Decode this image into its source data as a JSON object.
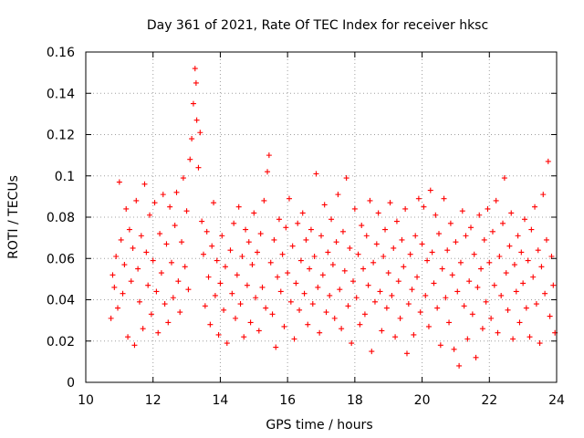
{
  "chart_data": {
    "type": "scatter",
    "title": "Day 361 of 2021, Rate Of TEC Index for receiver hksc",
    "xlabel": "GPS time / hours",
    "ylabel": "ROTI / TECUs",
    "xlim": [
      10,
      24
    ],
    "ylim": [
      0,
      0.16
    ],
    "xticks": [
      "10",
      "12",
      "14",
      "16",
      "18",
      "20",
      "22",
      "24"
    ],
    "yticks": [
      "0",
      "0.02",
      "0.04",
      "0.06",
      "0.08",
      "0.1",
      "0.12",
      "0.14",
      "0.16"
    ],
    "grid": true,
    "marker": "+",
    "color": "#ff0000",
    "series": [
      {
        "points": [
          [
            10.75,
            0.031
          ],
          [
            10.8,
            0.052
          ],
          [
            10.85,
            0.046
          ],
          [
            10.9,
            0.061
          ],
          [
            10.95,
            0.036
          ],
          [
            11.0,
            0.097
          ],
          [
            11.05,
            0.069
          ],
          [
            11.1,
            0.043
          ],
          [
            11.15,
            0.057
          ],
          [
            11.2,
            0.084
          ],
          [
            11.25,
            0.022
          ],
          [
            11.3,
            0.074
          ],
          [
            11.35,
            0.049
          ],
          [
            11.4,
            0.065
          ],
          [
            11.45,
            0.018
          ],
          [
            11.5,
            0.088
          ],
          [
            11.55,
            0.055
          ],
          [
            11.6,
            0.039
          ],
          [
            11.65,
            0.071
          ],
          [
            11.7,
            0.026
          ],
          [
            11.75,
            0.096
          ],
          [
            11.8,
            0.063
          ],
          [
            11.85,
            0.047
          ],
          [
            11.9,
            0.081
          ],
          [
            11.95,
            0.033
          ],
          [
            12.0,
            0.059
          ],
          [
            12.05,
            0.087
          ],
          [
            12.1,
            0.044
          ],
          [
            12.15,
            0.024
          ],
          [
            12.2,
            0.072
          ],
          [
            12.25,
            0.053
          ],
          [
            12.3,
            0.091
          ],
          [
            12.35,
            0.038
          ],
          [
            12.4,
            0.067
          ],
          [
            12.45,
            0.029
          ],
          [
            12.5,
            0.085
          ],
          [
            12.55,
            0.058
          ],
          [
            12.6,
            0.041
          ],
          [
            12.65,
            0.076
          ],
          [
            12.7,
            0.092
          ],
          [
            12.75,
            0.049
          ],
          [
            12.8,
            0.034
          ],
          [
            12.85,
            0.068
          ],
          [
            12.9,
            0.099
          ],
          [
            12.95,
            0.056
          ],
          [
            13.0,
            0.083
          ],
          [
            13.05,
            0.045
          ],
          [
            13.1,
            0.108
          ],
          [
            13.15,
            0.118
          ],
          [
            13.2,
            0.135
          ],
          [
            13.25,
            0.152
          ],
          [
            13.28,
            0.145
          ],
          [
            13.3,
            0.127
          ],
          [
            13.35,
            0.104
          ],
          [
            13.4,
            0.121
          ],
          [
            13.45,
            0.078
          ],
          [
            13.5,
            0.062
          ],
          [
            13.55,
            0.037
          ],
          [
            13.6,
            0.073
          ],
          [
            13.65,
            0.051
          ],
          [
            13.7,
            0.028
          ],
          [
            13.75,
            0.066
          ],
          [
            13.8,
            0.087
          ],
          [
            13.85,
            0.042
          ],
          [
            13.9,
            0.059
          ],
          [
            13.95,
            0.023
          ],
          [
            14.0,
            0.048
          ],
          [
            14.05,
            0.071
          ],
          [
            14.1,
            0.035
          ],
          [
            14.15,
            0.056
          ],
          [
            14.2,
            0.019
          ],
          [
            14.3,
            0.064
          ],
          [
            14.35,
            0.043
          ],
          [
            14.4,
            0.077
          ],
          [
            14.45,
            0.031
          ],
          [
            14.5,
            0.052
          ],
          [
            14.55,
            0.085
          ],
          [
            14.6,
            0.038
          ],
          [
            14.65,
            0.061
          ],
          [
            14.7,
            0.022
          ],
          [
            14.75,
            0.074
          ],
          [
            14.8,
            0.047
          ],
          [
            14.85,
            0.068
          ],
          [
            14.9,
            0.029
          ],
          [
            14.95,
            0.057
          ],
          [
            15.0,
            0.082
          ],
          [
            15.05,
            0.041
          ],
          [
            15.1,
            0.063
          ],
          [
            15.15,
            0.025
          ],
          [
            15.2,
            0.072
          ],
          [
            15.25,
            0.046
          ],
          [
            15.3,
            0.088
          ],
          [
            15.35,
            0.036
          ],
          [
            15.4,
            0.102
          ],
          [
            15.45,
            0.11
          ],
          [
            15.5,
            0.058
          ],
          [
            15.55,
            0.033
          ],
          [
            15.6,
            0.069
          ],
          [
            15.65,
            0.017
          ],
          [
            15.7,
            0.051
          ],
          [
            15.75,
            0.079
          ],
          [
            15.8,
            0.044
          ],
          [
            15.85,
            0.062
          ],
          [
            15.9,
            0.027
          ],
          [
            15.95,
            0.075
          ],
          [
            16.0,
            0.053
          ],
          [
            16.05,
            0.089
          ],
          [
            16.1,
            0.039
          ],
          [
            16.15,
            0.066
          ],
          [
            16.2,
            0.021
          ],
          [
            16.25,
            0.048
          ],
          [
            16.3,
            0.077
          ],
          [
            16.35,
            0.035
          ],
          [
            16.4,
            0.059
          ],
          [
            16.45,
            0.082
          ],
          [
            16.5,
            0.043
          ],
          [
            16.55,
            0.069
          ],
          [
            16.6,
            0.028
          ],
          [
            16.65,
            0.055
          ],
          [
            16.7,
            0.074
          ],
          [
            16.75,
            0.038
          ],
          [
            16.8,
            0.061
          ],
          [
            16.85,
            0.101
          ],
          [
            16.9,
            0.046
          ],
          [
            16.95,
            0.024
          ],
          [
            17.0,
            0.071
          ],
          [
            17.05,
            0.052
          ],
          [
            17.1,
            0.086
          ],
          [
            17.15,
            0.034
          ],
          [
            17.2,
            0.063
          ],
          [
            17.25,
            0.042
          ],
          [
            17.3,
            0.079
          ],
          [
            17.35,
            0.057
          ],
          [
            17.4,
            0.031
          ],
          [
            17.45,
            0.068
          ],
          [
            17.5,
            0.091
          ],
          [
            17.55,
            0.045
          ],
          [
            17.6,
            0.026
          ],
          [
            17.65,
            0.073
          ],
          [
            17.7,
            0.054
          ],
          [
            17.75,
            0.099
          ],
          [
            17.8,
            0.037
          ],
          [
            17.85,
            0.065
          ],
          [
            17.9,
            0.019
          ],
          [
            17.95,
            0.049
          ],
          [
            18.0,
            0.084
          ],
          [
            18.05,
            0.041
          ],
          [
            18.1,
            0.062
          ],
          [
            18.15,
            0.028
          ],
          [
            18.2,
            0.076
          ],
          [
            18.25,
            0.055
          ],
          [
            18.3,
            0.033
          ],
          [
            18.35,
            0.071
          ],
          [
            18.4,
            0.047
          ],
          [
            18.45,
            0.088
          ],
          [
            18.5,
            0.015
          ],
          [
            18.55,
            0.058
          ],
          [
            18.6,
            0.039
          ],
          [
            18.65,
            0.067
          ],
          [
            18.7,
            0.082
          ],
          [
            18.75,
            0.044
          ],
          [
            18.8,
            0.025
          ],
          [
            18.85,
            0.061
          ],
          [
            18.9,
            0.074
          ],
          [
            18.95,
            0.036
          ],
          [
            19.0,
            0.053
          ],
          [
            19.05,
            0.087
          ],
          [
            19.1,
            0.042
          ],
          [
            19.15,
            0.065
          ],
          [
            19.2,
            0.022
          ],
          [
            19.25,
            0.078
          ],
          [
            19.3,
            0.049
          ],
          [
            19.35,
            0.031
          ],
          [
            19.4,
            0.069
          ],
          [
            19.45,
            0.056
          ],
          [
            19.5,
            0.084
          ],
          [
            19.55,
            0.014
          ],
          [
            19.6,
            0.038
          ],
          [
            19.65,
            0.062
          ],
          [
            19.7,
            0.045
          ],
          [
            19.75,
            0.023
          ],
          [
            19.8,
            0.071
          ],
          [
            19.85,
            0.051
          ],
          [
            19.9,
            0.089
          ],
          [
            19.95,
            0.034
          ],
          [
            20.0,
            0.067
          ],
          [
            20.05,
            0.085
          ],
          [
            20.1,
            0.042
          ],
          [
            20.15,
            0.059
          ],
          [
            20.2,
            0.027
          ],
          [
            20.25,
            0.093
          ],
          [
            20.3,
            0.063
          ],
          [
            20.35,
            0.048
          ],
          [
            20.4,
            0.081
          ],
          [
            20.45,
            0.036
          ],
          [
            20.5,
            0.072
          ],
          [
            20.55,
            0.018
          ],
          [
            20.6,
            0.055
          ],
          [
            20.65,
            0.089
          ],
          [
            20.7,
            0.041
          ],
          [
            20.75,
            0.064
          ],
          [
            20.8,
            0.029
          ],
          [
            20.85,
            0.077
          ],
          [
            20.9,
            0.052
          ],
          [
            20.95,
            0.016
          ],
          [
            21.0,
            0.068
          ],
          [
            21.05,
            0.044
          ],
          [
            21.1,
            0.008
          ],
          [
            21.15,
            0.058
          ],
          [
            21.2,
            0.083
          ],
          [
            21.25,
            0.037
          ],
          [
            21.3,
            0.071
          ],
          [
            21.35,
            0.021
          ],
          [
            21.4,
            0.049
          ],
          [
            21.45,
            0.075
          ],
          [
            21.5,
            0.033
          ],
          [
            21.55,
            0.062
          ],
          [
            21.6,
            0.012
          ],
          [
            21.65,
            0.046
          ],
          [
            21.7,
            0.081
          ],
          [
            21.75,
            0.055
          ],
          [
            21.8,
            0.026
          ],
          [
            21.85,
            0.069
          ],
          [
            21.9,
            0.039
          ],
          [
            21.95,
            0.084
          ],
          [
            22.0,
            0.058
          ],
          [
            22.05,
            0.031
          ],
          [
            22.1,
            0.073
          ],
          [
            22.15,
            0.047
          ],
          [
            22.2,
            0.088
          ],
          [
            22.25,
            0.024
          ],
          [
            22.3,
            0.061
          ],
          [
            22.35,
            0.042
          ],
          [
            22.4,
            0.077
          ],
          [
            22.45,
            0.099
          ],
          [
            22.5,
            0.053
          ],
          [
            22.55,
            0.035
          ],
          [
            22.6,
            0.066
          ],
          [
            22.65,
            0.082
          ],
          [
            22.7,
            0.021
          ],
          [
            22.75,
            0.057
          ],
          [
            22.8,
            0.044
          ],
          [
            22.85,
            0.071
          ],
          [
            22.9,
            0.029
          ],
          [
            22.95,
            0.063
          ],
          [
            23.0,
            0.048
          ],
          [
            23.05,
            0.079
          ],
          [
            23.1,
            0.036
          ],
          [
            23.15,
            0.059
          ],
          [
            23.2,
            0.022
          ],
          [
            23.25,
            0.074
          ],
          [
            23.3,
            0.051
          ],
          [
            23.35,
            0.085
          ],
          [
            23.4,
            0.038
          ],
          [
            23.45,
            0.064
          ],
          [
            23.5,
            0.019
          ],
          [
            23.55,
            0.056
          ],
          [
            23.6,
            0.091
          ],
          [
            23.65,
            0.043
          ],
          [
            23.7,
            0.069
          ],
          [
            23.75,
            0.107
          ],
          [
            23.8,
            0.032
          ],
          [
            23.85,
            0.061
          ],
          [
            23.9,
            0.047
          ],
          [
            23.95,
            0.024
          ]
        ]
      }
    ]
  }
}
